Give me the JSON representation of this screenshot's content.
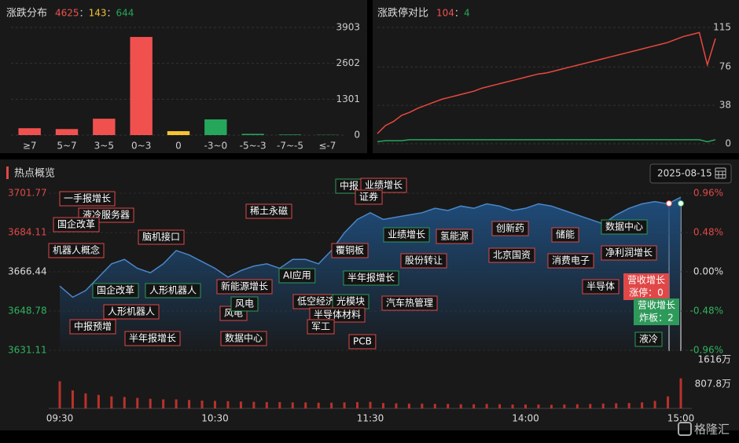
{
  "chart_data": [
    {
      "type": "bar",
      "title": "涨跌分布",
      "separator": "：",
      "stats": [
        {
          "value": 4625,
          "color": "#f0514f"
        },
        {
          "value": 143,
          "color": "#f5c232"
        },
        {
          "value": 644,
          "color": "#26a65b"
        }
      ],
      "categories": [
        "≥7",
        "5~7",
        "3~5",
        "0~3",
        "0",
        "-3~0",
        "-5~-3",
        "-7~-5",
        "≤-7"
      ],
      "values": [
        250,
        220,
        595,
        3560,
        143,
        570,
        45,
        20,
        9
      ],
      "colors": [
        "#f0514f",
        "#f0514f",
        "#f0514f",
        "#f0514f",
        "#f5c232",
        "#26a65b",
        "#26a65b",
        "#26a65b",
        "#26a65b"
      ],
      "ylim": [
        0,
        3903
      ],
      "yticks": [
        0,
        1301,
        2602,
        3903
      ],
      "grid": true
    },
    {
      "type": "line",
      "title": "涨跌停对比",
      "separator": "：",
      "stats": [
        {
          "value": 104,
          "color": "#f0514f"
        },
        {
          "value": 4,
          "color": "#26a65b"
        }
      ],
      "series": [
        {
          "color": "#e8483f",
          "values": [
            10,
            18,
            22,
            28,
            31,
            35,
            38,
            41,
            44,
            46,
            48,
            50,
            52,
            55,
            57,
            59,
            61,
            63,
            65,
            67,
            69,
            70,
            72,
            74,
            76,
            78,
            80,
            82,
            84,
            86,
            88,
            90,
            92,
            94,
            96,
            98,
            100,
            103,
            106,
            108,
            110,
            78,
            104
          ]
        },
        {
          "color": "#26a65b",
          "values": [
            2,
            3,
            3,
            3,
            4,
            4,
            4,
            4,
            4,
            4,
            4,
            4,
            4,
            4,
            4,
            4,
            4,
            4,
            4,
            4,
            4,
            4,
            4,
            4,
            4,
            4,
            4,
            4,
            4,
            4,
            4,
            4,
            4,
            4,
            4,
            4,
            4,
            4,
            4,
            4,
            4,
            2,
            4
          ]
        }
      ],
      "ylim": [
        0,
        115
      ],
      "yticks": [
        0,
        38,
        76,
        115
      ],
      "grid": true
    },
    {
      "type": "area",
      "title": "热点概览",
      "date": "2025-08-15",
      "color": "#4a86c8",
      "x": [
        0,
        5,
        10,
        15,
        20,
        25,
        30,
        35,
        40,
        45,
        50,
        55,
        60,
        65,
        70,
        75,
        80,
        85,
        90,
        95,
        100,
        105,
        110,
        115,
        120,
        125,
        130,
        135,
        140,
        145,
        150,
        155,
        160,
        165,
        170,
        175,
        180,
        185,
        190,
        195,
        200,
        205,
        210,
        215,
        220,
        225,
        230,
        235,
        240
      ],
      "values": [
        3660,
        3655,
        3658,
        3664,
        3670,
        3672,
        3668,
        3666,
        3670,
        3676,
        3674,
        3671,
        3668,
        3664,
        3667,
        3669,
        3670,
        3668,
        3672,
        3672,
        3670,
        3676,
        3684,
        3690,
        3693,
        3690,
        3691,
        3692,
        3693,
        3695,
        3694,
        3696,
        3695,
        3697,
        3696,
        3694,
        3695,
        3697,
        3696,
        3694,
        3692,
        3690,
        3688,
        3692,
        3695,
        3697,
        3698,
        3697,
        3700
      ],
      "xlim": [
        0,
        240
      ],
      "xticks": [
        {
          "value": 0,
          "label": "09:30"
        },
        {
          "value": 60,
          "label": "10:30"
        },
        {
          "value": 120,
          "label": "11:30"
        },
        {
          "value": 180,
          "label": "14:00"
        },
        {
          "value": 240,
          "label": "15:00"
        }
      ],
      "ylim": [
        3631.11,
        3701.77
      ],
      "yticks": [
        3631.11,
        3648.78,
        3666.44,
        3684.11,
        3701.77
      ],
      "y2lim": [
        -0.96,
        0.96
      ],
      "y2ticks": [
        {
          "value": -0.96,
          "label": "-0.96%"
        },
        {
          "value": -0.48,
          "label": "-0.48%"
        },
        {
          "value": 0,
          "label": "0.00%"
        },
        {
          "value": 0.48,
          "label": "0.48%"
        },
        {
          "value": 0.96,
          "label": "0.96%"
        }
      ],
      "volume": {
        "color": "#b8322b",
        "ylim": [
          0,
          1616
        ],
        "yticks": [
          {
            "value": 807.8,
            "label": "807.8万"
          },
          {
            "value": 1616,
            "label": "1616万"
          }
        ],
        "values": [
          900,
          600,
          500,
          450,
          400,
          380,
          350,
          320,
          300,
          300,
          280,
          260,
          250,
          240,
          230,
          220,
          210,
          210,
          200,
          200,
          190,
          190,
          200,
          210,
          220,
          180,
          170,
          160,
          160,
          150,
          150,
          140,
          140,
          150,
          140,
          130,
          130,
          130,
          120,
          130,
          140,
          150,
          160,
          170,
          180,
          200,
          250,
          400,
          1000
        ]
      },
      "annotations": [
        {
          "text": "一手报增长",
          "color": "#e04848"
        },
        {
          "text": "液冷服务器",
          "color": "#e04848"
        },
        {
          "text": "国企改革",
          "color": "#e04848"
        },
        {
          "text": "脑机接口",
          "color": "#e04848"
        },
        {
          "text": "机器人概念",
          "color": "#e04848"
        },
        {
          "text": "稀土永磁",
          "color": "#e04848"
        },
        {
          "text": "新能源增长",
          "color": "#e04848"
        },
        {
          "text": "国企改革",
          "color": "#2e9a5a"
        },
        {
          "text": "人形机器人",
          "color": "#2e9a5a"
        },
        {
          "text": "人形机器人",
          "color": "#e04848"
        },
        {
          "text": "中报预增",
          "color": "#e04848"
        },
        {
          "text": "半年报增长",
          "color": "#e04848"
        },
        {
          "text": "风电",
          "color": "#e04848"
        },
        {
          "text": "风电",
          "color": "#2e9a5a"
        },
        {
          "text": "数据中心",
          "color": "#e04848"
        },
        {
          "text": "AI应用",
          "color": "#2e9a5a"
        },
        {
          "text": "低空经济",
          "color": "#e04848"
        },
        {
          "text": "光模块",
          "color": "#2e9a5a"
        },
        {
          "text": "半导体材料",
          "color": "#e04848"
        },
        {
          "text": "军工",
          "color": "#e04848"
        },
        {
          "text": "PCB",
          "color": "#e04848"
        },
        {
          "text": "覆铜板",
          "color": "#e04848"
        },
        {
          "text": "半年报增长",
          "color": "#2e9a5a"
        },
        {
          "text": "中报",
          "color": "#2e9a5a"
        },
        {
          "text": "业绩增长",
          "color": "#e04848"
        },
        {
          "text": "证券",
          "color": "#e04848"
        },
        {
          "text": "业绩增长",
          "color": "#2e9a5a"
        },
        {
          "text": "氢能源",
          "color": "#e04848"
        },
        {
          "text": "股份转让",
          "color": "#e04848"
        },
        {
          "text": "汽车热管理",
          "color": "#e04848"
        },
        {
          "text": "创新药",
          "color": "#e04848"
        },
        {
          "text": "北京国资",
          "color": "#e04848"
        },
        {
          "text": "储能",
          "color": "#e04848"
        },
        {
          "text": "消费电子",
          "color": "#e04848"
        },
        {
          "text": "数据中心",
          "color": "#2e9a5a"
        },
        {
          "text": "净利润增长",
          "color": "#e04848"
        },
        {
          "text": "半导体",
          "color": "#e04848"
        },
        {
          "text": "液冷",
          "color": "#2e9a5a"
        }
      ],
      "tooltips": [
        {
          "lines": [
            "营收增长",
            "涨停：0"
          ],
          "color": "#e04848"
        },
        {
          "lines": [
            "营收增长",
            "炸板：2"
          ],
          "color": "#2e9a5a"
        }
      ]
    }
  ],
  "watermark": "格隆汇"
}
